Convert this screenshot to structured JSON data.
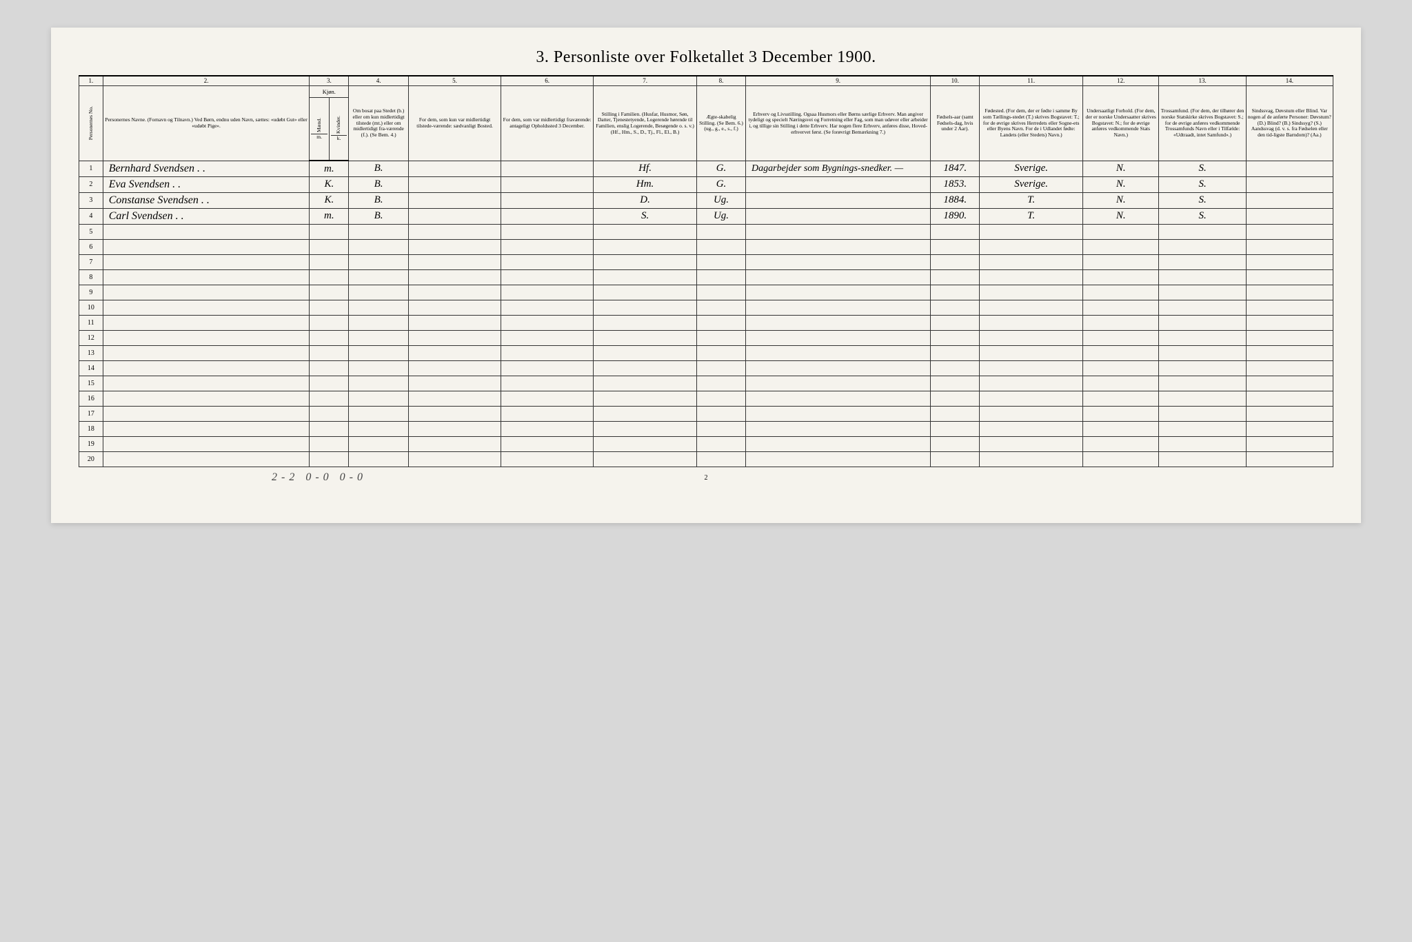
{
  "title": "3. Personliste over Folketallet 3 December 1900.",
  "columns_num": [
    "1.",
    "2.",
    "3.",
    "4.",
    "5.",
    "6.",
    "7.",
    "8.",
    "9.",
    "10.",
    "11.",
    "12.",
    "13.",
    "14."
  ],
  "col3_header": "Kjøn.",
  "col3a": "Mænd.",
  "col3b": "Kvinder.",
  "headers": {
    "c1": "Personernes No.",
    "c2": "Personernes Navne.\n(Fornavn og Tilnavn.)\nVed Børn, endnu uden Navn, sættes: «udøbt Gut» eller «udøbt Pige».",
    "c3": "m. k.",
    "c4": "Om bosat paa Stedet (b.) eller om kun midlertidigt tilstede (mt.) eller om midlertidigt fra-værende (f.). (Se Bem. 4.)",
    "c5": "For dem, som kun var midlertidigt tilstede-værende:\nsædvanligt Bosted.",
    "c6": "For dem, som var midlertidigt fraværende:\nantageligt Opholdssted 3 December.",
    "c7": "Stilling i Familien.\n(Husfar, Husmor, Søn, Datter, Tjenestetyende, Logerende hørende til Familien, enslig Logerende, Besøgende o. s. v.)\n(Hf., Hm., S., D., Tj., Fl., El., B.)",
    "c8": "Ægte-skabelig Stilling.\n(Se Bem. 6.)\n(ug., g., e., s., f.)",
    "c9": "Erhverv og Livsstilling.\nOgsaa Husmors eller Børns særlige Erhverv. Man angiver tydeligt og specielt Næringsvei og Forretning eller Fag, som man udøver eller arbeider i, og tillige sin Stilling i dette Erhverv. Har nogen flere Erhverv, anføres disse, Hoved-erhvervet først.\n(Se forøvrigt Bemærkning 7.)",
    "c10": "Fødsels-aar\n(samt Fødsels-dag, hvis under 2 Aar).",
    "c11": "Fødested.\n(For dem, der er fødte i samme By som Tællings-stedet (T.) skrives Bogstavet: T.; for de øvrige skrives Herredets eller Sogne-ets eller Byens Navn. For de i Udlandet fødte: Landets (eller Stedets) Navn.)",
    "c12": "Undersaatligt Forhold.\n(For dem, der er norske Undersaatter skrives Bogstavet: N.; for de øvrige anføres vedkommende Stats Navn.)",
    "c13": "Trossamfund.\n(For dem, der tilhører den norske Statskirke skrives Bogstavet: S.; for de øvrige anføres vedkommende Trossamfunds Navn eller i Tilfælde: «Udtraadt, intet Samfund».)",
    "c14": "Sindssvag, Døvstum eller Blind.\nVar nogen af de anførte Personer:\nDøvstum? (D.)\nBlind? (B.)\nSindssyg? (S.)\nAandssvag (d. v. s. fra Fødselen eller den tid-ligste Barndom)? (Aa.)"
  },
  "rows": [
    {
      "n": "1",
      "name": "Bernhard Svendsen . .",
      "mk": "m.",
      "b": "B.",
      "c5": "",
      "c6": "",
      "c7": "Hf.",
      "c8": "G.",
      "c9": "Dagarbejder som Bygnings-snedker. —",
      "c10": "1847.",
      "c11": "Sverige.",
      "c12": "N.",
      "c13": "S.",
      "c14": ""
    },
    {
      "n": "2",
      "name": "Eva Svendsen . .",
      "mk": "K.",
      "b": "B.",
      "c5": "",
      "c6": "",
      "c7": "Hm.",
      "c8": "G.",
      "c9": "",
      "c10": "1853.",
      "c11": "Sverige.",
      "c12": "N.",
      "c13": "S.",
      "c14": ""
    },
    {
      "n": "3",
      "name": "Constanse Svendsen . .",
      "mk": "K.",
      "b": "B.",
      "c5": "",
      "c6": "",
      "c7": "D.",
      "c8": "Ug.",
      "c9": "",
      "c10": "1884.",
      "c11": "T.",
      "c12": "N.",
      "c13": "S.",
      "c14": ""
    },
    {
      "n": "4",
      "name": "Carl Svendsen . .",
      "mk": "m.",
      "b": "B.",
      "c5": "",
      "c6": "",
      "c7": "S.",
      "c8": "Ug.",
      "c9": "",
      "c10": "1890.",
      "c11": "T.",
      "c12": "N.",
      "c13": "S.",
      "c14": ""
    }
  ],
  "empty_rows": [
    "5",
    "6",
    "7",
    "8",
    "9",
    "10",
    "11",
    "12",
    "13",
    "14",
    "15",
    "16",
    "17",
    "18",
    "19",
    "20"
  ],
  "footer": "2-2  0-0   0-0",
  "pagenum": "2"
}
